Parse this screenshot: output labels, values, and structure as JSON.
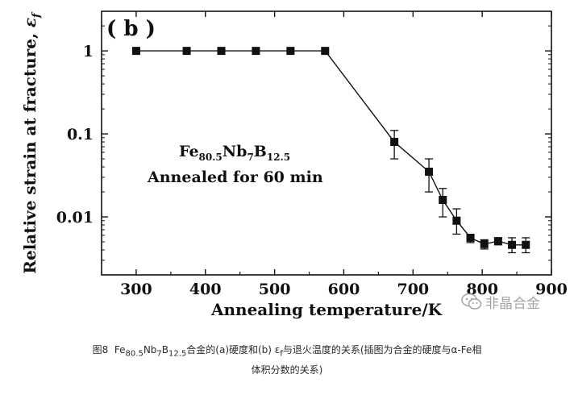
{
  "chart_data": {
    "type": "scatter",
    "panel_label": "( b )",
    "xlabel": "Annealing temperature/K",
    "ylabel": "Relative strain at fracture, ",
    "ylabel_symbol": "ε",
    "ylabel_symbol_sub": "f",
    "x_scale": "linear",
    "y_scale": "log",
    "xlim": [
      250,
      900
    ],
    "ylim": [
      0.002,
      3
    ],
    "x_ticks": [
      300,
      400,
      500,
      600,
      700,
      800,
      900
    ],
    "y_ticks": [
      {
        "value": 1,
        "label": "1"
      },
      {
        "value": 0.1,
        "label": "0.1"
      },
      {
        "value": 0.01,
        "label": "0.01"
      }
    ],
    "grid": false,
    "annotation": {
      "composition": {
        "base": "Fe",
        "parts": [
          {
            "t": "Fe",
            "sub": "80.5"
          },
          {
            "t": "Nb",
            "sub": "7"
          },
          {
            "t": "B",
            "sub": "12.5"
          }
        ]
      },
      "condition": "Annealed for 60 min"
    },
    "series": [
      {
        "marker": "square",
        "color": "#111111",
        "points": [
          {
            "x": 300,
            "y": 1.0
          },
          {
            "x": 373,
            "y": 1.0
          },
          {
            "x": 423,
            "y": 1.0
          },
          {
            "x": 473,
            "y": 1.0
          },
          {
            "x": 523,
            "y": 1.0
          },
          {
            "x": 573,
            "y": 1.0
          },
          {
            "x": 673,
            "y": 0.08,
            "err_low": 0.05,
            "err_high": 0.11
          },
          {
            "x": 723,
            "y": 0.035,
            "err_low": 0.02,
            "err_high": 0.05
          },
          {
            "x": 743,
            "y": 0.016,
            "err_low": 0.01,
            "err_high": 0.022
          },
          {
            "x": 763,
            "y": 0.009,
            "err_low": 0.0062,
            "err_high": 0.0125
          },
          {
            "x": 783,
            "y": 0.0056,
            "err_low": 0.0049,
            "err_high": 0.0061
          },
          {
            "x": 803,
            "y": 0.0047,
            "err_low": 0.0041,
            "err_high": 0.0053
          },
          {
            "x": 823,
            "y": 0.0051,
            "err_low": 0.0046,
            "err_high": 0.0056
          },
          {
            "x": 843,
            "y": 0.0046,
            "err_low": 0.0037,
            "err_high": 0.0056
          },
          {
            "x": 863,
            "y": 0.0046,
            "err_low": 0.0037,
            "err_high": 0.0056
          }
        ]
      }
    ]
  },
  "caption": {
    "figure_no": "图8",
    "prefix": "Fe",
    "sub1": "80.5",
    "mid1": "Nb",
    "sub2": "7",
    "mid2": "B",
    "sub3": "12.5",
    "text_a": "合金的(a)硬度和(b) ε",
    "sub_f": "f",
    "text_b": "与退火温度的关系(插图为合金的硬度与α-Fe相",
    "line2": "体积分数的关系)"
  },
  "watermark": {
    "text": "非晶合金",
    "icon": "wechat-icon"
  }
}
